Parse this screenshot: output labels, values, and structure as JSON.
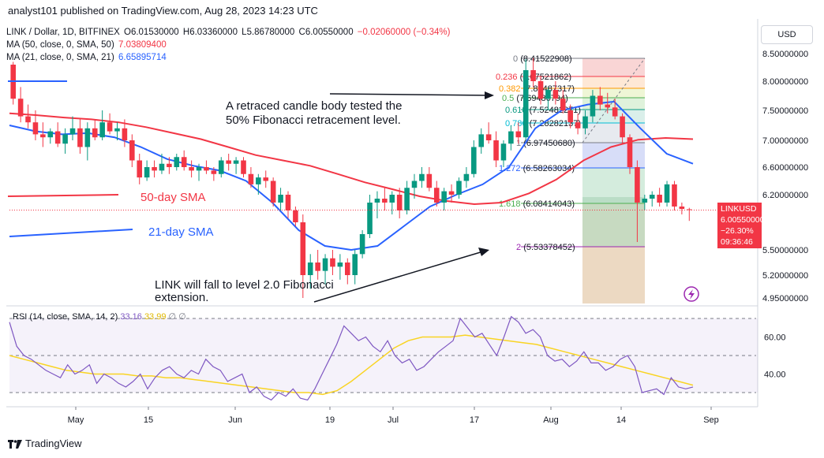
{
  "header": {
    "text": "analyst101 published on TradingView.com, Aug 28, 2023 14:23 UTC"
  },
  "legend": {
    "symbol": "LINK / Dollar, 1D, BITFINEX",
    "ohlc": {
      "o": "O6.01530000",
      "h": "H6.03360000",
      "l": "L5.86780000",
      "c": "C6.00550000",
      "chg": "−0.02060000 (−0.34%)"
    },
    "ma50": {
      "label": "MA (50, close, 0, SMA, 50)",
      "value": "7.03809400",
      "color": "#f23645"
    },
    "ma21": {
      "label": "MA (21, close, 0, SMA, 21)",
      "value": "6.65895714",
      "color": "#2962ff"
    }
  },
  "currency_button": "USD",
  "price_badge": {
    "symbol": "LINKUSD",
    "price": "6.00550000",
    "change": "−26.30%",
    "timer": "09:36:46",
    "color": "#f23645"
  },
  "annotations": {
    "retrace_1": "A retraced candle body tested the",
    "retrace_2": "50% Fibonacci retracement level.",
    "sma50": "50-day SMA",
    "sma21": "21-day SMA",
    "fall_1": "LINK will fall to level 2.0 Fibonacci",
    "fall_2": "extension."
  },
  "rsi_legend": {
    "label": "RSI (14, close, SMA, 14, 2)",
    "v1": "33.16",
    "v2": "33.99",
    "extra": "∅ ∅",
    "color": "#7e57c2",
    "ma_color": "#f9d423"
  },
  "footer": {
    "brand": "TradingView"
  },
  "chart_data": [
    {
      "type": "candlestick",
      "symbol": "LINK / Dollar",
      "yaxis_ticks": [
        "8.50000000",
        "8.00000000",
        "7.50000000",
        "7.00000000",
        "6.60000000",
        "6.20000000",
        "5.50000000",
        "5.20000000",
        "4.95000000"
      ],
      "xaxis_ticks": [
        "May",
        "15",
        "Jun",
        "19",
        "Jul",
        "17",
        "Aug",
        "14",
        "Sep"
      ],
      "ylim": [
        4.85,
        8.6
      ],
      "candles": [
        [
          8.3,
          8.35,
          7.6,
          7.7
        ],
        [
          7.7,
          7.9,
          7.3,
          7.4
        ],
        [
          7.4,
          7.6,
          7.2,
          7.3
        ],
        [
          7.3,
          7.5,
          7.0,
          7.1
        ],
        [
          7.1,
          7.3,
          6.9,
          7.05
        ],
        [
          7.05,
          7.2,
          6.95,
          7.15
        ],
        [
          7.15,
          7.3,
          6.9,
          6.95
        ],
        [
          6.95,
          7.2,
          6.8,
          7.1
        ],
        [
          7.1,
          7.4,
          7.0,
          7.2
        ],
        [
          7.2,
          7.35,
          6.8,
          6.9
        ],
        [
          6.9,
          7.3,
          6.7,
          7.2
        ],
        [
          7.2,
          7.35,
          7.0,
          7.05
        ],
        [
          7.05,
          7.5,
          7.0,
          7.3
        ],
        [
          7.3,
          7.45,
          7.1,
          7.15
        ],
        [
          7.15,
          7.3,
          7.0,
          7.2
        ],
        [
          7.2,
          7.35,
          6.9,
          7.0
        ],
        [
          7.0,
          7.1,
          6.6,
          6.7
        ],
        [
          6.7,
          6.8,
          6.35,
          6.45
        ],
        [
          6.45,
          6.7,
          6.4,
          6.6
        ],
        [
          6.6,
          6.7,
          6.45,
          6.55
        ],
        [
          6.55,
          6.8,
          6.5,
          6.65
        ],
        [
          6.65,
          6.75,
          6.5,
          6.6
        ],
        [
          6.6,
          6.8,
          6.55,
          6.75
        ],
        [
          6.75,
          6.85,
          6.55,
          6.6
        ],
        [
          6.6,
          6.7,
          6.45,
          6.55
        ],
        [
          6.55,
          6.65,
          6.4,
          6.6
        ],
        [
          6.6,
          6.7,
          6.5,
          6.55
        ],
        [
          6.55,
          6.6,
          6.4,
          6.5
        ],
        [
          6.5,
          6.75,
          6.45,
          6.7
        ],
        [
          6.7,
          6.8,
          6.55,
          6.65
        ],
        [
          6.65,
          6.75,
          6.5,
          6.7
        ],
        [
          6.7,
          6.75,
          6.45,
          6.5
        ],
        [
          6.5,
          6.6,
          6.3,
          6.35
        ],
        [
          6.35,
          6.5,
          6.2,
          6.45
        ],
        [
          6.45,
          6.55,
          6.3,
          6.4
        ],
        [
          6.4,
          6.45,
          6.05,
          6.1
        ],
        [
          6.1,
          6.3,
          6.0,
          6.2
        ],
        [
          6.2,
          6.25,
          5.9,
          6.0
        ],
        [
          6.0,
          6.05,
          5.8,
          5.85
        ],
        [
          5.85,
          5.95,
          4.95,
          5.2
        ],
        [
          5.2,
          5.45,
          5.05,
          5.35
        ],
        [
          5.35,
          5.5,
          5.15,
          5.25
        ],
        [
          5.25,
          5.45,
          5.1,
          5.4
        ],
        [
          5.4,
          5.5,
          5.2,
          5.3
        ],
        [
          5.3,
          5.45,
          5.15,
          5.35
        ],
        [
          5.35,
          5.4,
          5.1,
          5.2
        ],
        [
          5.2,
          5.5,
          5.1,
          5.45
        ],
        [
          5.45,
          5.75,
          5.4,
          5.7
        ],
        [
          5.7,
          6.2,
          5.65,
          6.1
        ],
        [
          6.1,
          6.25,
          5.9,
          6.15
        ],
        [
          6.15,
          6.3,
          6.0,
          6.1
        ],
        [
          6.1,
          6.25,
          5.95,
          6.2
        ],
        [
          6.2,
          6.3,
          5.9,
          6.0
        ],
        [
          6.0,
          6.4,
          5.95,
          6.3
        ],
        [
          6.3,
          6.5,
          6.15,
          6.4
        ],
        [
          6.4,
          6.6,
          6.3,
          6.5
        ],
        [
          6.5,
          6.6,
          6.25,
          6.3
        ],
        [
          6.3,
          6.4,
          6.05,
          6.1
        ],
        [
          6.1,
          6.3,
          6.0,
          6.25
        ],
        [
          6.25,
          6.35,
          6.1,
          6.2
        ],
        [
          6.2,
          6.45,
          6.15,
          6.4
        ],
        [
          6.4,
          6.6,
          6.3,
          6.5
        ],
        [
          6.5,
          7.0,
          6.45,
          6.9
        ],
        [
          6.9,
          7.2,
          6.8,
          7.1
        ],
        [
          7.1,
          7.3,
          6.95,
          7.0
        ],
        [
          7.0,
          7.15,
          6.6,
          6.7
        ],
        [
          6.7,
          7.0,
          6.6,
          6.95
        ],
        [
          6.95,
          7.25,
          6.85,
          7.15
        ],
        [
          7.15,
          7.3,
          6.95,
          7.05
        ],
        [
          7.05,
          8.4,
          7.0,
          8.2
        ],
        [
          8.2,
          8.42,
          7.9,
          8.0
        ],
        [
          8.0,
          8.1,
          7.6,
          7.7
        ],
        [
          7.7,
          7.9,
          7.5,
          7.85
        ],
        [
          7.85,
          8.0,
          7.6,
          7.7
        ],
        [
          7.7,
          7.85,
          7.45,
          7.5
        ],
        [
          7.5,
          7.6,
          7.2,
          7.3
        ],
        [
          7.3,
          7.45,
          7.1,
          7.2
        ],
        [
          7.2,
          7.5,
          7.1,
          7.4
        ],
        [
          7.4,
          7.85,
          7.3,
          7.75
        ],
        [
          7.75,
          7.9,
          7.5,
          7.6
        ],
        [
          7.6,
          7.8,
          7.45,
          7.55
        ],
        [
          7.55,
          7.7,
          7.35,
          7.4
        ],
        [
          7.4,
          7.45,
          6.95,
          7.05
        ],
        [
          7.05,
          7.1,
          6.5,
          6.6
        ],
        [
          6.6,
          6.7,
          5.6,
          6.1
        ],
        [
          6.1,
          6.2,
          6.0,
          6.15
        ],
        [
          6.15,
          6.25,
          6.05,
          6.2
        ],
        [
          6.2,
          6.3,
          6.05,
          6.1
        ],
        [
          6.1,
          6.4,
          6.05,
          6.35
        ],
        [
          6.35,
          6.4,
          6.0,
          6.05
        ],
        [
          6.05,
          6.1,
          5.95,
          6.02
        ],
        [
          6.015,
          6.034,
          5.868,
          6.006
        ]
      ],
      "ma50": [
        7.45,
        7.42,
        7.38,
        7.35,
        7.3,
        7.22,
        7.12,
        7.02,
        6.9,
        6.78,
        6.7,
        6.62,
        6.5,
        6.38,
        6.28,
        6.18,
        6.12,
        6.08,
        6.1,
        6.22,
        6.42,
        6.7,
        6.9,
        7.01,
        7.04,
        7.02
      ],
      "ma21": [
        7.25,
        7.15,
        7.1,
        7.12,
        7.05,
        6.9,
        6.72,
        6.62,
        6.55,
        6.4,
        6.1,
        5.75,
        5.55,
        5.5,
        5.55,
        5.8,
        6.05,
        6.2,
        6.35,
        6.6,
        7.2,
        7.5,
        7.6,
        7.65,
        7.2,
        6.8,
        6.65
      ],
      "fibonacci": [
        {
          "level": "0",
          "price": "(8.41522908)"
        },
        {
          "level": "0.236",
          "price": "(8.07521862)"
        },
        {
          "level": "0.382",
          "price": "(7.86487317)"
        },
        {
          "level": "0.5",
          "price": "(7.69486794)"
        },
        {
          "level": "0.618",
          "price": "(7.52482271)"
        },
        {
          "level": "0.786",
          "price": "(7.28282137)"
        },
        {
          "level": "1",
          "price": "(6.97450680)"
        },
        {
          "level": "1.272",
          "price": "(6.58263034)"
        },
        {
          "level": "1.618",
          "price": "(6.08414043)"
        },
        {
          "level": "2",
          "price": "(5.53378452)"
        }
      ]
    },
    {
      "type": "line",
      "name": "RSI (14, close, SMA, 14, 2)",
      "yaxis_ticks": [
        "60.00",
        "40.00"
      ],
      "ylim": [
        20,
        80
      ],
      "rsi": [
        68,
        55,
        50,
        48,
        45,
        42,
        40,
        38,
        45,
        40,
        42,
        45,
        35,
        40,
        38,
        35,
        33,
        36,
        40,
        32,
        38,
        42,
        44,
        40,
        38,
        42,
        40,
        48,
        44,
        42,
        36,
        38,
        40,
        30,
        33,
        28,
        26,
        30,
        28,
        32,
        27,
        26,
        32,
        40,
        48,
        56,
        66,
        62,
        58,
        60,
        55,
        52,
        58,
        50,
        46,
        48,
        42,
        44,
        48,
        52,
        55,
        58,
        70,
        65,
        60,
        62,
        56,
        50,
        60,
        71,
        68,
        62,
        64,
        60,
        50,
        47,
        48,
        44,
        47,
        52,
        46,
        46,
        42,
        44,
        48,
        50,
        44,
        30,
        31,
        32,
        29,
        38,
        33,
        32,
        33
      ],
      "rsi_ma": [
        50,
        48,
        46,
        44,
        42,
        41,
        40,
        40,
        40,
        39,
        39,
        38,
        38,
        37,
        36,
        35,
        34,
        33,
        32,
        31,
        30,
        30,
        29,
        31,
        36,
        42,
        48,
        54,
        58,
        60,
        60,
        60,
        61,
        60,
        59,
        58,
        57,
        56,
        54,
        52,
        50,
        48,
        46,
        44,
        42,
        40,
        38,
        36,
        34
      ]
    }
  ]
}
